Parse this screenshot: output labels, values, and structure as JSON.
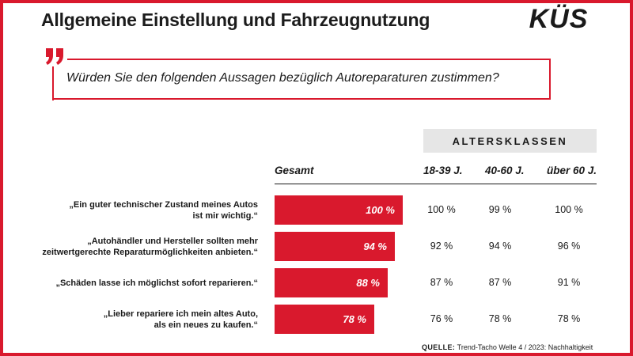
{
  "title": "Allgemeine Einstellung und Fahrzeugnutzung",
  "logo_text": "KÜS",
  "question": "Würden Sie den folgenden Aussagen bezüglich Autoreparaturen zustimmen?",
  "colors": {
    "accent": "#d9192d",
    "age_header_bg": "#e6e6e6",
    "text": "#1a1a1a"
  },
  "chart_data": {
    "type": "bar",
    "categories": [
      "„Ein guter technischer Zustand meines Autos\nist mir wichtig.“",
      "„Autohändler und Hersteller sollten mehr\nzeitwertgerechte Reparaturmöglichkeiten anbieten.“",
      "„Schäden lasse ich möglichst sofort reparieren.“",
      "„Lieber repariere ich mein altes Auto,\nals ein neues zu kaufen.“"
    ],
    "series": [
      {
        "name": "Gesamt",
        "values": [
          100,
          94,
          88,
          78
        ],
        "labels": [
          "100 %",
          "94 %",
          "88 %",
          "78 %"
        ]
      },
      {
        "name": "18-39 J.",
        "values": [
          100,
          92,
          87,
          76
        ],
        "labels": [
          "100 %",
          "92 %",
          "87 %",
          "76 %"
        ]
      },
      {
        "name": "40-60 J.",
        "values": [
          99,
          94,
          87,
          78
        ],
        "labels": [
          "99 %",
          "94 %",
          "87 %",
          "78 %"
        ]
      },
      {
        "name": "über 60 J.",
        "values": [
          100,
          96,
          91,
          78
        ],
        "labels": [
          "100 %",
          "96 %",
          "91 %",
          "78 %"
        ]
      }
    ],
    "group_header": "ALTERSKLASSEN",
    "ylim": [
      0,
      100
    ]
  },
  "source": {
    "label": "QUELLE:",
    "text": "Trend-Tacho Welle 4 / 2023: Nachhaltigkeit"
  }
}
